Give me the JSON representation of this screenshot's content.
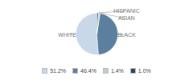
{
  "chart_data": {
    "type": "pie",
    "categories": [
      "WHITE",
      "BLACK",
      "ASIAN",
      "HISPANIC"
    ],
    "values": [
      51.2,
      46.4,
      1.4,
      1.0
    ],
    "value_labels": [
      "51.2%",
      "46.4%",
      "1.4%",
      "1.0%"
    ],
    "colors": [
      "#c9d8e8",
      "#5b7f9e",
      "#b8cdd8",
      "#2c4a5e"
    ],
    "legend": "bottom"
  }
}
